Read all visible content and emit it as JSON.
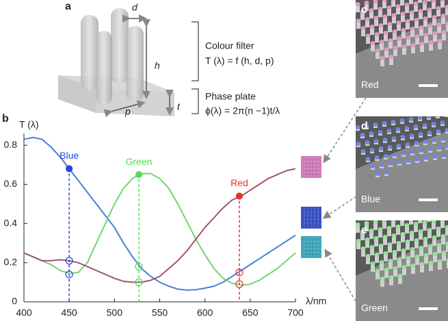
{
  "panel_labels": [
    "a",
    "b",
    "c",
    "d",
    "e"
  ],
  "schematic": {
    "labels": {
      "d": "d",
      "h": "h",
      "t": "t",
      "p": "p"
    },
    "colour_filter": {
      "title": "Colour filter",
      "formula": "T (λ) = f (h, d, p)"
    },
    "phase_plate": {
      "title": "Phase plate",
      "formula": "ϕ(λ) = 2π(n −1)t/λ"
    }
  },
  "chart_data": {
    "type": "line",
    "y_label": "T (λ)",
    "x_label": "λ/nm",
    "x": [
      400,
      410,
      420,
      430,
      440,
      450,
      460,
      470,
      480,
      490,
      500,
      510,
      520,
      530,
      540,
      550,
      560,
      570,
      580,
      590,
      600,
      610,
      620,
      630,
      640,
      650,
      660,
      670,
      680,
      690,
      700
    ],
    "series": [
      {
        "color": "#4a7fd6",
        "values": [
          0.83,
          0.84,
          0.83,
          0.79,
          0.74,
          0.68,
          0.62,
          0.56,
          0.5,
          0.44,
          0.38,
          0.3,
          0.23,
          0.17,
          0.13,
          0.1,
          0.08,
          0.065,
          0.06,
          0.062,
          0.07,
          0.08,
          0.1,
          0.13,
          0.16,
          0.19,
          0.22,
          0.25,
          0.28,
          0.31,
          0.34
        ]
      },
      {
        "color": "#72d472",
        "values": [
          0.25,
          0.23,
          0.21,
          0.19,
          0.16,
          0.145,
          0.15,
          0.2,
          0.3,
          0.4,
          0.5,
          0.58,
          0.63,
          0.655,
          0.655,
          0.63,
          0.58,
          0.5,
          0.41,
          0.32,
          0.24,
          0.17,
          0.12,
          0.095,
          0.085,
          0.09,
          0.11,
          0.14,
          0.17,
          0.21,
          0.25
        ]
      },
      {
        "color": "#a3526f",
        "values": [
          0.25,
          0.23,
          0.21,
          0.21,
          0.215,
          0.21,
          0.2,
          0.18,
          0.16,
          0.14,
          0.12,
          0.105,
          0.1,
          0.1,
          0.11,
          0.13,
          0.17,
          0.21,
          0.26,
          0.32,
          0.38,
          0.43,
          0.48,
          0.52,
          0.54,
          0.57,
          0.6,
          0.63,
          0.65,
          0.67,
          0.68
        ]
      }
    ],
    "markers": [
      {
        "label": "Blue",
        "color": "#2446e0",
        "x": 450,
        "values": [
          0.68,
          0.21,
          0.14
        ]
      },
      {
        "label": "Green",
        "color": "#4fdc4f",
        "x": 527,
        "values": [
          0.65,
          0.18,
          0.1
        ]
      },
      {
        "label": "Red",
        "color": "#e8302a",
        "x": 638,
        "values": [
          0.54,
          0.15,
          0.09
        ]
      }
    ],
    "xlim": [
      400,
      700
    ],
    "ylim": [
      0,
      0.86
    ],
    "xticks": [
      400,
      450,
      500,
      550,
      600,
      650,
      700
    ],
    "yticks": [
      0,
      0.2,
      0.4,
      0.6,
      0.8
    ]
  },
  "sem_images": [
    {
      "label": "Red",
      "color": "#e896c8",
      "thumb_color": "#d27cbc"
    },
    {
      "label": "Blue",
      "color": "#6e86e6",
      "thumb_color": "#3a52c8"
    },
    {
      "label": "Green",
      "color": "#8ee88e",
      "thumb_color": "#3fa8bc"
    }
  ]
}
